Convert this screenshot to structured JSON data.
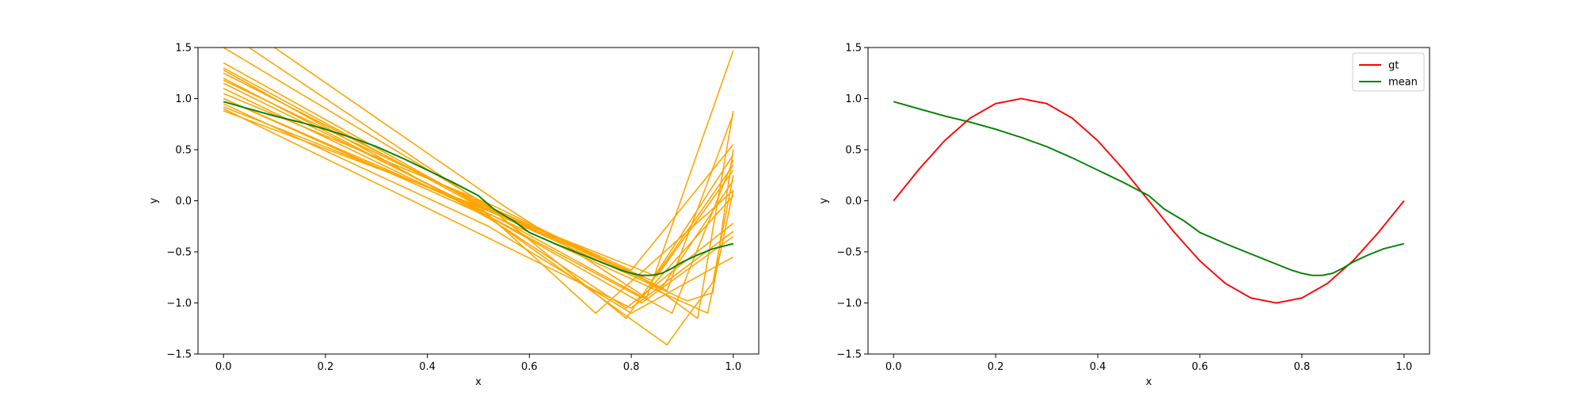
{
  "chart_data": [
    {
      "type": "line",
      "title": "",
      "xlabel": "x",
      "ylabel": "y",
      "xlim": [
        -0.05,
        1.05
      ],
      "ylim": [
        -1.5,
        1.5
      ],
      "xticks": [
        "0.0",
        "0.2",
        "0.4",
        "0.6",
        "0.8",
        "1.0"
      ],
      "yticks": [
        "−1.5",
        "−1.0",
        "−0.5",
        "0.0",
        "0.5",
        "1.0",
        "1.5"
      ],
      "grid": false,
      "legend": null,
      "sample_color": "#FFA500",
      "mean_color": "#008000",
      "samples": [
        {
          "x": [
            0,
            0.53,
            0.8,
            1.0
          ],
          "y": [
            1.5,
            -0.08,
            -0.68,
            0.55
          ]
        },
        {
          "x": [
            0,
            0.53,
            0.84,
            1.0
          ],
          "y": [
            1.35,
            -0.12,
            -0.78,
            0.45
          ]
        },
        {
          "x": [
            0,
            0.5,
            0.85,
            1.0
          ],
          "y": [
            1.3,
            -0.05,
            -0.74,
            0.3
          ]
        },
        {
          "x": [
            0,
            0.53,
            0.86,
            1.0
          ],
          "y": [
            1.25,
            -0.1,
            -0.85,
            0.2
          ]
        },
        {
          "x": [
            0,
            0.52,
            0.82,
            1.0
          ],
          "y": [
            1.2,
            -0.15,
            -0.95,
            0.05
          ]
        },
        {
          "x": [
            0,
            0.55,
            0.88,
            1.0
          ],
          "y": [
            1.15,
            -0.2,
            -1.1,
            0.4
          ]
        },
        {
          "x": [
            0,
            0.5,
            0.79,
            1.0
          ],
          "y": [
            1.1,
            -0.1,
            -1.05,
            -0.22
          ]
        },
        {
          "x": [
            0,
            0.53,
            0.87,
            1.0
          ],
          "y": [
            1.05,
            -0.05,
            -0.88,
            0.85
          ]
        },
        {
          "x": [
            0,
            0.53,
            0.82,
            1.0
          ],
          "y": [
            1.0,
            -0.18,
            -1.0,
            -0.35
          ]
        },
        {
          "x": [
            0,
            0.52,
            0.8,
            1.0
          ],
          "y": [
            0.95,
            -0.25,
            -1.1,
            -0.55
          ]
        },
        {
          "x": [
            0,
            0.35,
            0.8,
            1.0
          ],
          "y": [
            0.9,
            0.05,
            -1.05,
            -0.3
          ]
        },
        {
          "x": [
            0,
            0.5,
            0.73,
            1.0
          ],
          "y": [
            0.88,
            -0.05,
            -1.1,
            0.1
          ]
        },
        {
          "x": [
            0.05,
            0.53,
            0.79,
            1.0
          ],
          "y": [
            1.5,
            -0.1,
            -1.15,
            0.35
          ]
        },
        {
          "x": [
            0.1,
            0.55,
            0.83,
            1.0
          ],
          "y": [
            1.5,
            -0.05,
            -0.95,
            1.47
          ]
        },
        {
          "x": [
            0,
            0.53,
            0.87,
            0.9,
            0.96,
            1.0
          ],
          "y": [
            1.28,
            -0.2,
            -1.41,
            -1.2,
            -0.8,
            0.25
          ]
        },
        {
          "x": [
            0,
            0.53,
            0.86,
            0.95,
            1.0
          ],
          "y": [
            1.0,
            -0.15,
            -0.9,
            -1.1,
            0.1
          ]
        },
        {
          "x": [
            0,
            0.53,
            0.91,
            0.96,
            1.0
          ],
          "y": [
            0.92,
            -0.12,
            -0.98,
            -0.9,
            0.5
          ]
        },
        {
          "x": [
            0,
            0.53,
            0.82,
            0.93,
            1.0
          ],
          "y": [
            1.18,
            -0.08,
            -0.75,
            -1.15,
            0.88
          ]
        }
      ],
      "series": [
        {
          "name": "",
          "x": [
            0.0,
            0.05,
            0.1,
            0.15,
            0.2,
            0.25,
            0.3,
            0.35,
            0.4,
            0.45,
            0.5,
            0.53,
            0.57,
            0.6,
            0.65,
            0.7,
            0.75,
            0.78,
            0.8,
            0.82,
            0.84,
            0.86,
            0.88,
            0.9,
            0.93,
            0.96,
            1.0
          ],
          "y": [
            0.97,
            0.9,
            0.83,
            0.77,
            0.7,
            0.62,
            0.53,
            0.42,
            0.3,
            0.18,
            0.05,
            -0.08,
            -0.2,
            -0.31,
            -0.42,
            -0.52,
            -0.62,
            -0.68,
            -0.71,
            -0.73,
            -0.73,
            -0.71,
            -0.66,
            -0.6,
            -0.53,
            -0.47,
            -0.42
          ]
        }
      ]
    },
    {
      "type": "line",
      "title": "",
      "xlabel": "x",
      "ylabel": "y",
      "xlim": [
        -0.05,
        1.05
      ],
      "ylim": [
        -1.5,
        1.5
      ],
      "xticks": [
        "0.0",
        "0.2",
        "0.4",
        "0.6",
        "0.8",
        "1.0"
      ],
      "yticks": [
        "−1.5",
        "−1.0",
        "−0.5",
        "0.0",
        "0.5",
        "1.0",
        "1.5"
      ],
      "grid": false,
      "legend": "top-right",
      "series": [
        {
          "name": "gt",
          "color": "#FF0000",
          "x": [
            0.0,
            0.05,
            0.1,
            0.15,
            0.2,
            0.25,
            0.3,
            0.35,
            0.4,
            0.45,
            0.5,
            0.55,
            0.6,
            0.65,
            0.7,
            0.75,
            0.8,
            0.85,
            0.9,
            0.95,
            1.0
          ],
          "y": [
            0.0,
            0.309,
            0.588,
            0.809,
            0.951,
            1.0,
            0.951,
            0.809,
            0.588,
            0.309,
            0.0,
            -0.309,
            -0.588,
            -0.809,
            -0.951,
            -1.0,
            -0.951,
            -0.809,
            -0.588,
            -0.309,
            0.0
          ]
        },
        {
          "name": "mean",
          "color": "#008000",
          "x": [
            0.0,
            0.05,
            0.1,
            0.15,
            0.2,
            0.25,
            0.3,
            0.35,
            0.4,
            0.45,
            0.5,
            0.53,
            0.57,
            0.6,
            0.65,
            0.7,
            0.75,
            0.78,
            0.8,
            0.82,
            0.84,
            0.86,
            0.88,
            0.9,
            0.93,
            0.96,
            1.0
          ],
          "y": [
            0.97,
            0.9,
            0.83,
            0.77,
            0.7,
            0.62,
            0.53,
            0.42,
            0.3,
            0.18,
            0.05,
            -0.08,
            -0.2,
            -0.31,
            -0.42,
            -0.52,
            -0.62,
            -0.68,
            -0.71,
            -0.73,
            -0.73,
            -0.71,
            -0.66,
            -0.6,
            -0.53,
            -0.47,
            -0.42
          ]
        }
      ]
    }
  ]
}
